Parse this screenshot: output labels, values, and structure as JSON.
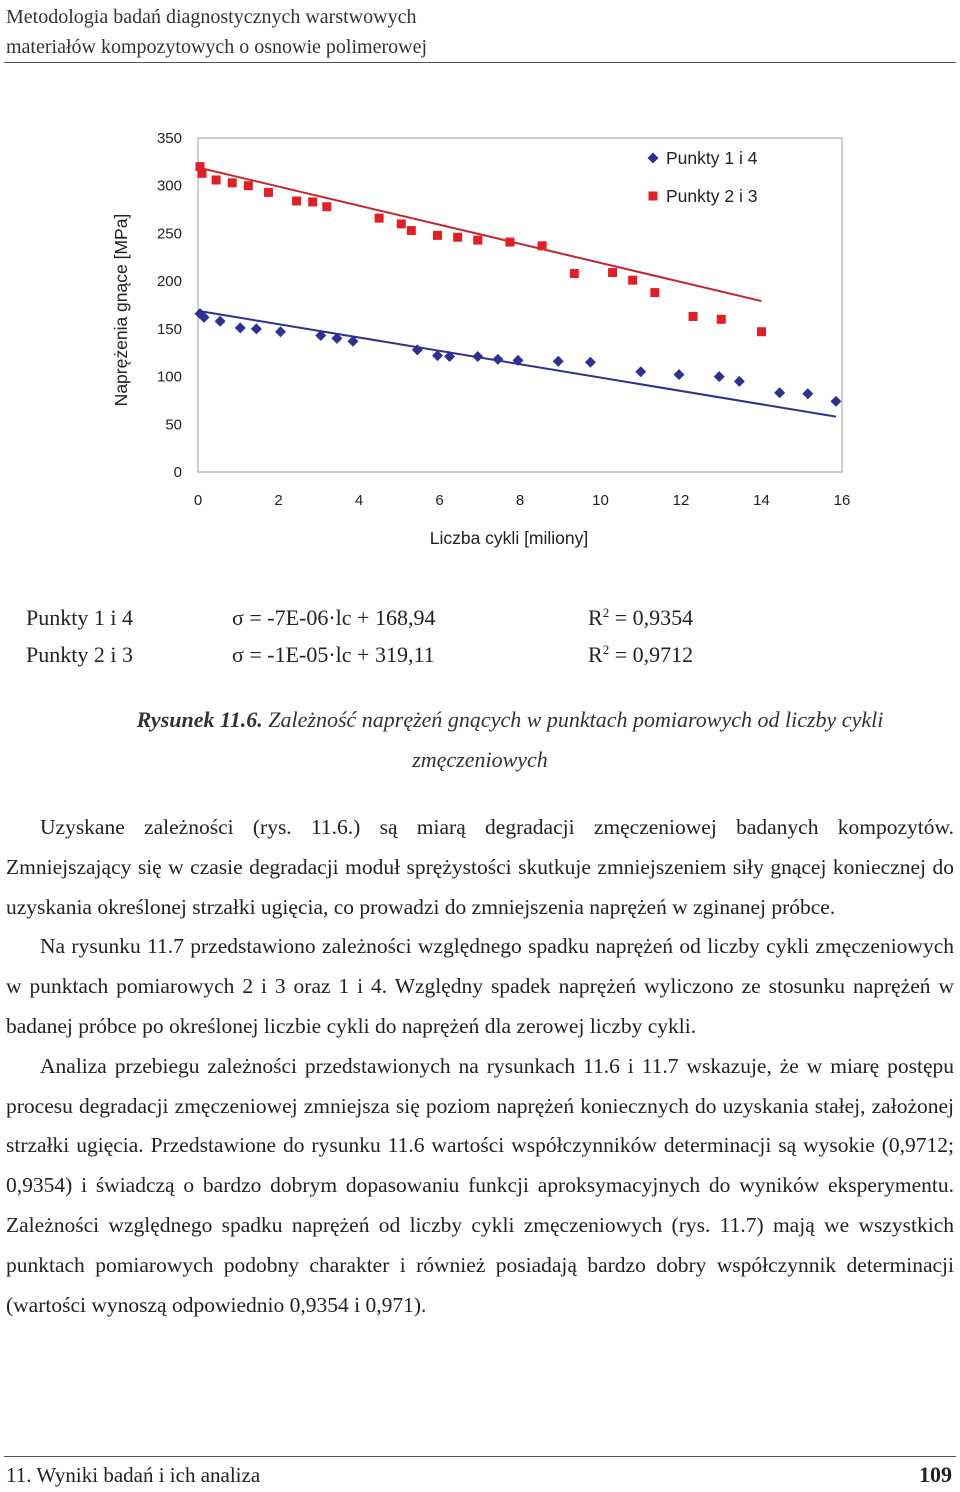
{
  "header": {
    "line1": "Metodologia badań diagnostycznych warstwowych",
    "line2": "materiałów kompozytowych o osnowie polimerowej"
  },
  "chart_data": {
    "type": "scatter",
    "ylabel": "Naprężenia gnące  [MPa]",
    "xlabel": "Liczba cykli [miliony]",
    "xlim": [
      0,
      16
    ],
    "ylim": [
      0,
      350
    ],
    "x_ticks": [
      "0",
      "2",
      "4",
      "6",
      "8",
      "10",
      "12",
      "14",
      "16"
    ],
    "y_ticks": [
      "0",
      "50",
      "100",
      "150",
      "200",
      "250",
      "300",
      "350"
    ],
    "grid": false,
    "legend_position": "top-right",
    "series": [
      {
        "name": "Punkty 1 i 4",
        "marker": "diamond",
        "color": "#2e3192",
        "trend_color": "#2e3192",
        "trend": {
          "slope": -7.0,
          "intercept": 168.94
        },
        "points": [
          [
            0.05,
            166
          ],
          [
            0.15,
            162
          ],
          [
            0.55,
            158
          ],
          [
            1.05,
            151
          ],
          [
            1.45,
            150
          ],
          [
            2.05,
            147
          ],
          [
            3.05,
            143
          ],
          [
            3.45,
            140
          ],
          [
            3.85,
            137
          ],
          [
            5.45,
            128
          ],
          [
            5.95,
            122
          ],
          [
            6.25,
            121
          ],
          [
            6.95,
            121
          ],
          [
            7.45,
            118
          ],
          [
            7.95,
            117
          ],
          [
            8.95,
            116
          ],
          [
            9.75,
            115
          ],
          [
            11.0,
            105
          ],
          [
            11.95,
            102
          ],
          [
            12.95,
            100
          ],
          [
            13.45,
            95
          ],
          [
            14.45,
            83
          ],
          [
            15.15,
            82
          ],
          [
            15.85,
            74
          ]
        ]
      },
      {
        "name": "Punkty 2 i 3",
        "marker": "square",
        "color": "#e31e24",
        "trend_color": "#c1272d",
        "trend": {
          "slope": -10.0,
          "intercept": 319.11
        },
        "points": [
          [
            0.05,
            320
          ],
          [
            0.1,
            313
          ],
          [
            0.45,
            306
          ],
          [
            0.85,
            303
          ],
          [
            1.25,
            300
          ],
          [
            1.75,
            293
          ],
          [
            2.45,
            284
          ],
          [
            2.85,
            283
          ],
          [
            3.2,
            278
          ],
          [
            4.5,
            266
          ],
          [
            5.05,
            260
          ],
          [
            5.3,
            253
          ],
          [
            5.95,
            248
          ],
          [
            6.45,
            246
          ],
          [
            6.95,
            243
          ],
          [
            7.75,
            241
          ],
          [
            8.55,
            237
          ],
          [
            9.35,
            208
          ],
          [
            10.3,
            209
          ],
          [
            10.8,
            201
          ],
          [
            11.35,
            188
          ],
          [
            12.3,
            163
          ],
          [
            13.0,
            160
          ],
          [
            14.0,
            147
          ]
        ]
      }
    ]
  },
  "equations": [
    {
      "name": "Punkty 1 i 4",
      "formula": "σ = -7E-06·lc + 168,94",
      "r2_label": "R",
      "r2_exp": "2",
      "r2_value": " = 0,9354"
    },
    {
      "name": "Punkty 2 i 3",
      "formula": "σ = -1E-05·lc + 319,11",
      "r2_label": "R",
      "r2_exp": "2",
      "r2_value": " = 0,9712"
    }
  ],
  "caption": {
    "label": "Rysunek 11.6.",
    "text_line1": " Zależność naprężeń gnących w punktach pomiarowych od liczby cykli",
    "text_line2": "zmęczeniowych"
  },
  "paragraphs": [
    "Uzyskane zależności (rys. 11.6.) są miarą degradacji zmęczeniowej badanych kompozytów. Zmniejszający się w czasie degradacji moduł sprężystości skutkuje zmniejszeniem siły gnącej koniecznej do uzyskania określonej strzałki ugięcia, co prowadzi do zmniejszenia naprężeń w zginanej próbce.",
    "Na rysunku 11.7 przedstawiono zależności względnego spadku naprężeń od liczby cykli zmęczeniowych w punktach pomiarowych 2 i 3 oraz 1 i 4. Względny spadek naprężeń wyliczono ze stosunku naprężeń w badanej próbce po określonej liczbie cykli do naprężeń dla zerowej liczby cykli.",
    "Analiza przebiegu zależności przedstawionych na rysunkach 11.6 i 11.7 wskazuje, że w miarę postępu procesu degradacji zmęczeniowej zmniejsza się poziom naprężeń koniecznych do uzyskania stałej, założonej strzałki ugięcia. Przedstawione do rysunku 11.6 wartości współczynników determinacji są wysokie (0,9712; 0,9354) i świadczą o bardzo dobrym dopasowaniu funkcji aproksymacyjnych do wyników eksperymentu. Zależności względnego spadku naprężeń od liczby cykli zmęczeniowych (rys. 11.7) mają we wszystkich punktach pomiarowych podobny charakter i również posiadają bardzo dobry współczynnik determinacji (wartości wynoszą odpowiednio 0,9354 i 0,971)."
  ],
  "footer": {
    "chapter": "11. Wyniki badań i ich analiza",
    "page_number": "109"
  }
}
